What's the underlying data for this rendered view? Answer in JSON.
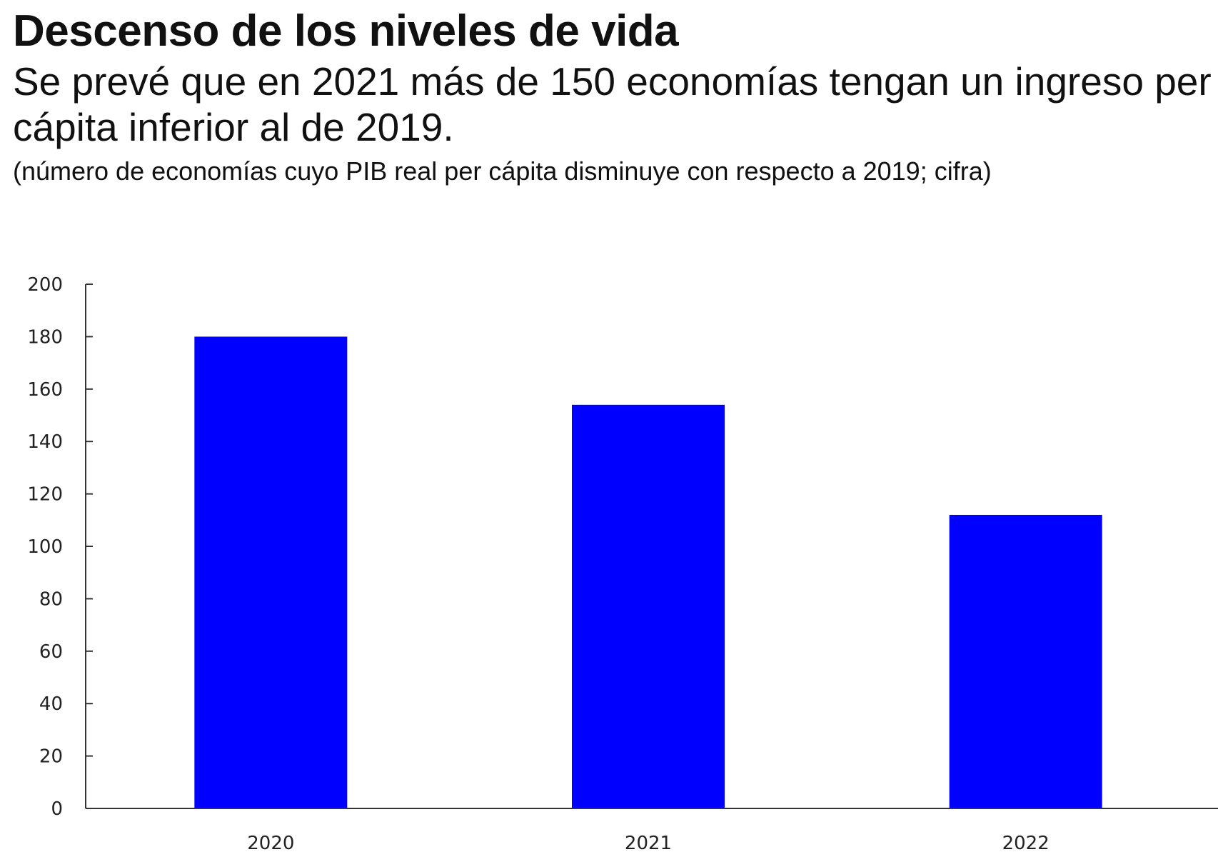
{
  "header": {
    "title": "Descenso de los niveles de vida",
    "subtitle": "Se prevé que en 2021 más de 150 economías tengan un ingreso per cápita inferior al de 2019.",
    "note": "(número de economías cuyo PIB real per cápita disminuye con respecto a 2019; cifra)"
  },
  "chart_data": {
    "type": "bar",
    "categories": [
      "2020",
      "2021",
      "2022"
    ],
    "values": [
      180,
      154,
      112
    ],
    "ylim": [
      0,
      200
    ],
    "yticks": [
      0,
      20,
      40,
      60,
      80,
      100,
      120,
      140,
      160,
      180,
      200
    ],
    "grid": false,
    "legend": "none",
    "bar_color": "#0000ff",
    "axis_color": "#333333"
  }
}
